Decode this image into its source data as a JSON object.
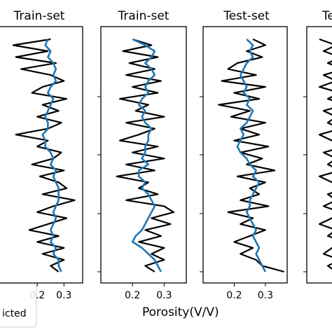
{
  "chart_data": [
    {
      "type": "line",
      "title": "Train-set",
      "xlabel": "",
      "xlim": [
        0.05,
        0.37
      ],
      "x_ticks": [
        0.2,
        0.3
      ],
      "x_tick_labels": [
        "0.2",
        "0.3"
      ],
      "depth_samples": 40,
      "series": [
        {
          "color": "#000000",
          "x": [
            0.25,
            0.11,
            0.24,
            0.12,
            0.27,
            0.14,
            0.25,
            0.3,
            0.22,
            0.18,
            0.31,
            0.22,
            0.28,
            0.2,
            0.29,
            0.24,
            0.12,
            0.24,
            0.2,
            0.29,
            0.26,
            0.18,
            0.3,
            0.21,
            0.28,
            0.31,
            0.22,
            0.34,
            0.26,
            0.2,
            0.31,
            0.24,
            0.17,
            0.28,
            0.2,
            0.3,
            0.22,
            0.3,
            0.25,
            0.28
          ]
        },
        {
          "color": "#1f77b4",
          "x": [
            0.24,
            0.23,
            0.25,
            0.24,
            0.26,
            0.27,
            0.26,
            0.27,
            0.25,
            0.24,
            0.26,
            0.25,
            0.24,
            0.23,
            0.24,
            0.24,
            0.22,
            0.23,
            0.23,
            0.25,
            0.26,
            0.25,
            0.27,
            0.26,
            0.27,
            0.28,
            0.28,
            0.28,
            0.27,
            0.26,
            0.27,
            0.26,
            0.25,
            0.26,
            0.25,
            0.27,
            0.26,
            0.28,
            0.28,
            0.29
          ]
        }
      ]
    },
    {
      "type": "line",
      "title": "Train-set",
      "xlabel": "",
      "xlim": [
        0.1,
        0.37
      ],
      "x_ticks": [
        0.2,
        0.3
      ],
      "x_tick_labels": [
        "0.2",
        "0.3"
      ],
      "depth_samples": 40,
      "series": [
        {
          "color": "#000000",
          "x": [
            0.2,
            0.26,
            0.17,
            0.28,
            0.19,
            0.27,
            0.18,
            0.29,
            0.2,
            0.28,
            0.16,
            0.25,
            0.21,
            0.3,
            0.18,
            0.27,
            0.22,
            0.16,
            0.28,
            0.2,
            0.3,
            0.18,
            0.27,
            0.15,
            0.25,
            0.22,
            0.28,
            0.18,
            0.3,
            0.33,
            0.26,
            0.32,
            0.24,
            0.29,
            0.22,
            0.3,
            0.26,
            0.3,
            0.24,
            0.27
          ]
        },
        {
          "color": "#1f77b4",
          "x": [
            0.2,
            0.24,
            0.27,
            0.26,
            0.24,
            0.26,
            0.27,
            0.25,
            0.24,
            0.25,
            0.23,
            0.22,
            0.24,
            0.23,
            0.24,
            0.26,
            0.25,
            0.25,
            0.24,
            0.24,
            0.23,
            0.25,
            0.22,
            0.22,
            0.24,
            0.23,
            0.25,
            0.26,
            0.27,
            0.26,
            0.25,
            0.24,
            0.23,
            0.21,
            0.2,
            0.23,
            0.25,
            0.27,
            0.28,
            0.29
          ]
        }
      ]
    },
    {
      "type": "line",
      "title": "Test-set",
      "xlabel": "",
      "xlim": [
        0.1,
        0.37
      ],
      "x_ticks": [
        0.2,
        0.3
      ],
      "x_tick_labels": [
        "0.2",
        "0.3"
      ],
      "depth_samples": 40,
      "series": [
        {
          "color": "#000000",
          "x": [
            0.26,
            0.3,
            0.24,
            0.29,
            0.21,
            0.18,
            0.27,
            0.16,
            0.3,
            0.2,
            0.28,
            0.15,
            0.25,
            0.19,
            0.3,
            0.22,
            0.28,
            0.2,
            0.31,
            0.22,
            0.29,
            0.24,
            0.33,
            0.21,
            0.3,
            0.25,
            0.28,
            0.22,
            0.31,
            0.18,
            0.26,
            0.22,
            0.3,
            0.25,
            0.2,
            0.26,
            0.22,
            0.27,
            0.29,
            0.36
          ]
        },
        {
          "color": "#1f77b4",
          "x": [
            0.24,
            0.26,
            0.25,
            0.26,
            0.24,
            0.23,
            0.22,
            0.23,
            0.24,
            0.23,
            0.25,
            0.24,
            0.26,
            0.25,
            0.24,
            0.22,
            0.23,
            0.22,
            0.21,
            0.22,
            0.24,
            0.25,
            0.27,
            0.26,
            0.28,
            0.27,
            0.26,
            0.25,
            0.25,
            0.24,
            0.25,
            0.26,
            0.27,
            0.26,
            0.27,
            0.28,
            0.27,
            0.28,
            0.29,
            0.3
          ]
        }
      ]
    },
    {
      "type": "line",
      "title": "Te",
      "xlabel": "",
      "depth_samples": 40,
      "series": [
        {
          "color": "#000000",
          "x": [
            0.3,
            0.7,
            0.4,
            0.8,
            0.5,
            0.9,
            0.4,
            0.7,
            0.3,
            0.8,
            0.5,
            0.9,
            0.4,
            0.7,
            0.5,
            0.8,
            0.3,
            0.6,
            0.9,
            0.4,
            0.7,
            0.5,
            0.8,
            0.3,
            0.6,
            0.9,
            0.5,
            0.7,
            0.4,
            0.8,
            0.6,
            0.3,
            0.7,
            0.5,
            0.9,
            0.6,
            0.4,
            0.8,
            0.5,
            0.7
          ]
        }
      ]
    }
  ],
  "shared_xlabel": "Porosity(V/V)",
  "legend": {
    "entries": [
      {
        "label": "icted",
        "color": "#1f77b4"
      }
    ]
  }
}
